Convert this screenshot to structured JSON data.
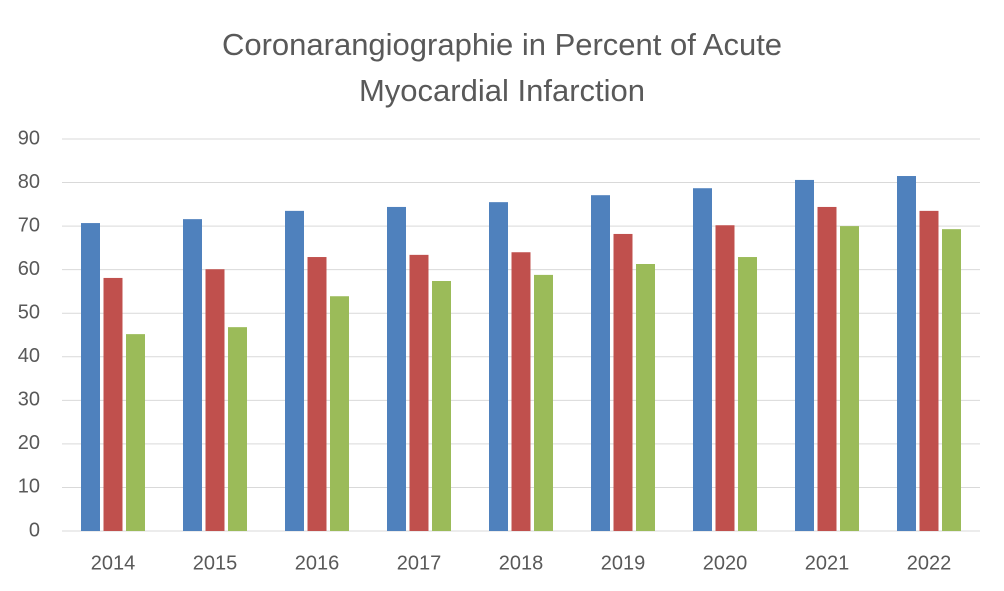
{
  "chart_data": {
    "type": "bar",
    "title": [
      "Coronarangiographie in Percent of  Acute",
      "Myocardial Infarction"
    ],
    "categories": [
      "2014",
      "2015",
      "2016",
      "2017",
      "2018",
      "2019",
      "2020",
      "2021",
      "2022"
    ],
    "series": [
      {
        "color": "#4f81bd",
        "values": [
          70.7,
          71.6,
          73.5,
          74.4,
          75.5,
          77.1,
          78.7,
          80.6,
          81.5
        ]
      },
      {
        "color": "#c0504d",
        "values": [
          58.1,
          60.1,
          62.9,
          63.4,
          64.0,
          68.2,
          70.2,
          74.4,
          73.5
        ]
      },
      {
        "color": "#9bbb59",
        "values": [
          45.2,
          46.8,
          53.9,
          57.4,
          58.8,
          61.3,
          62.9,
          70.0,
          69.3
        ]
      }
    ],
    "ylim": [
      0,
      90
    ],
    "yticks": [
      0,
      10,
      20,
      30,
      40,
      50,
      60,
      70,
      80,
      90
    ],
    "grid": true
  }
}
